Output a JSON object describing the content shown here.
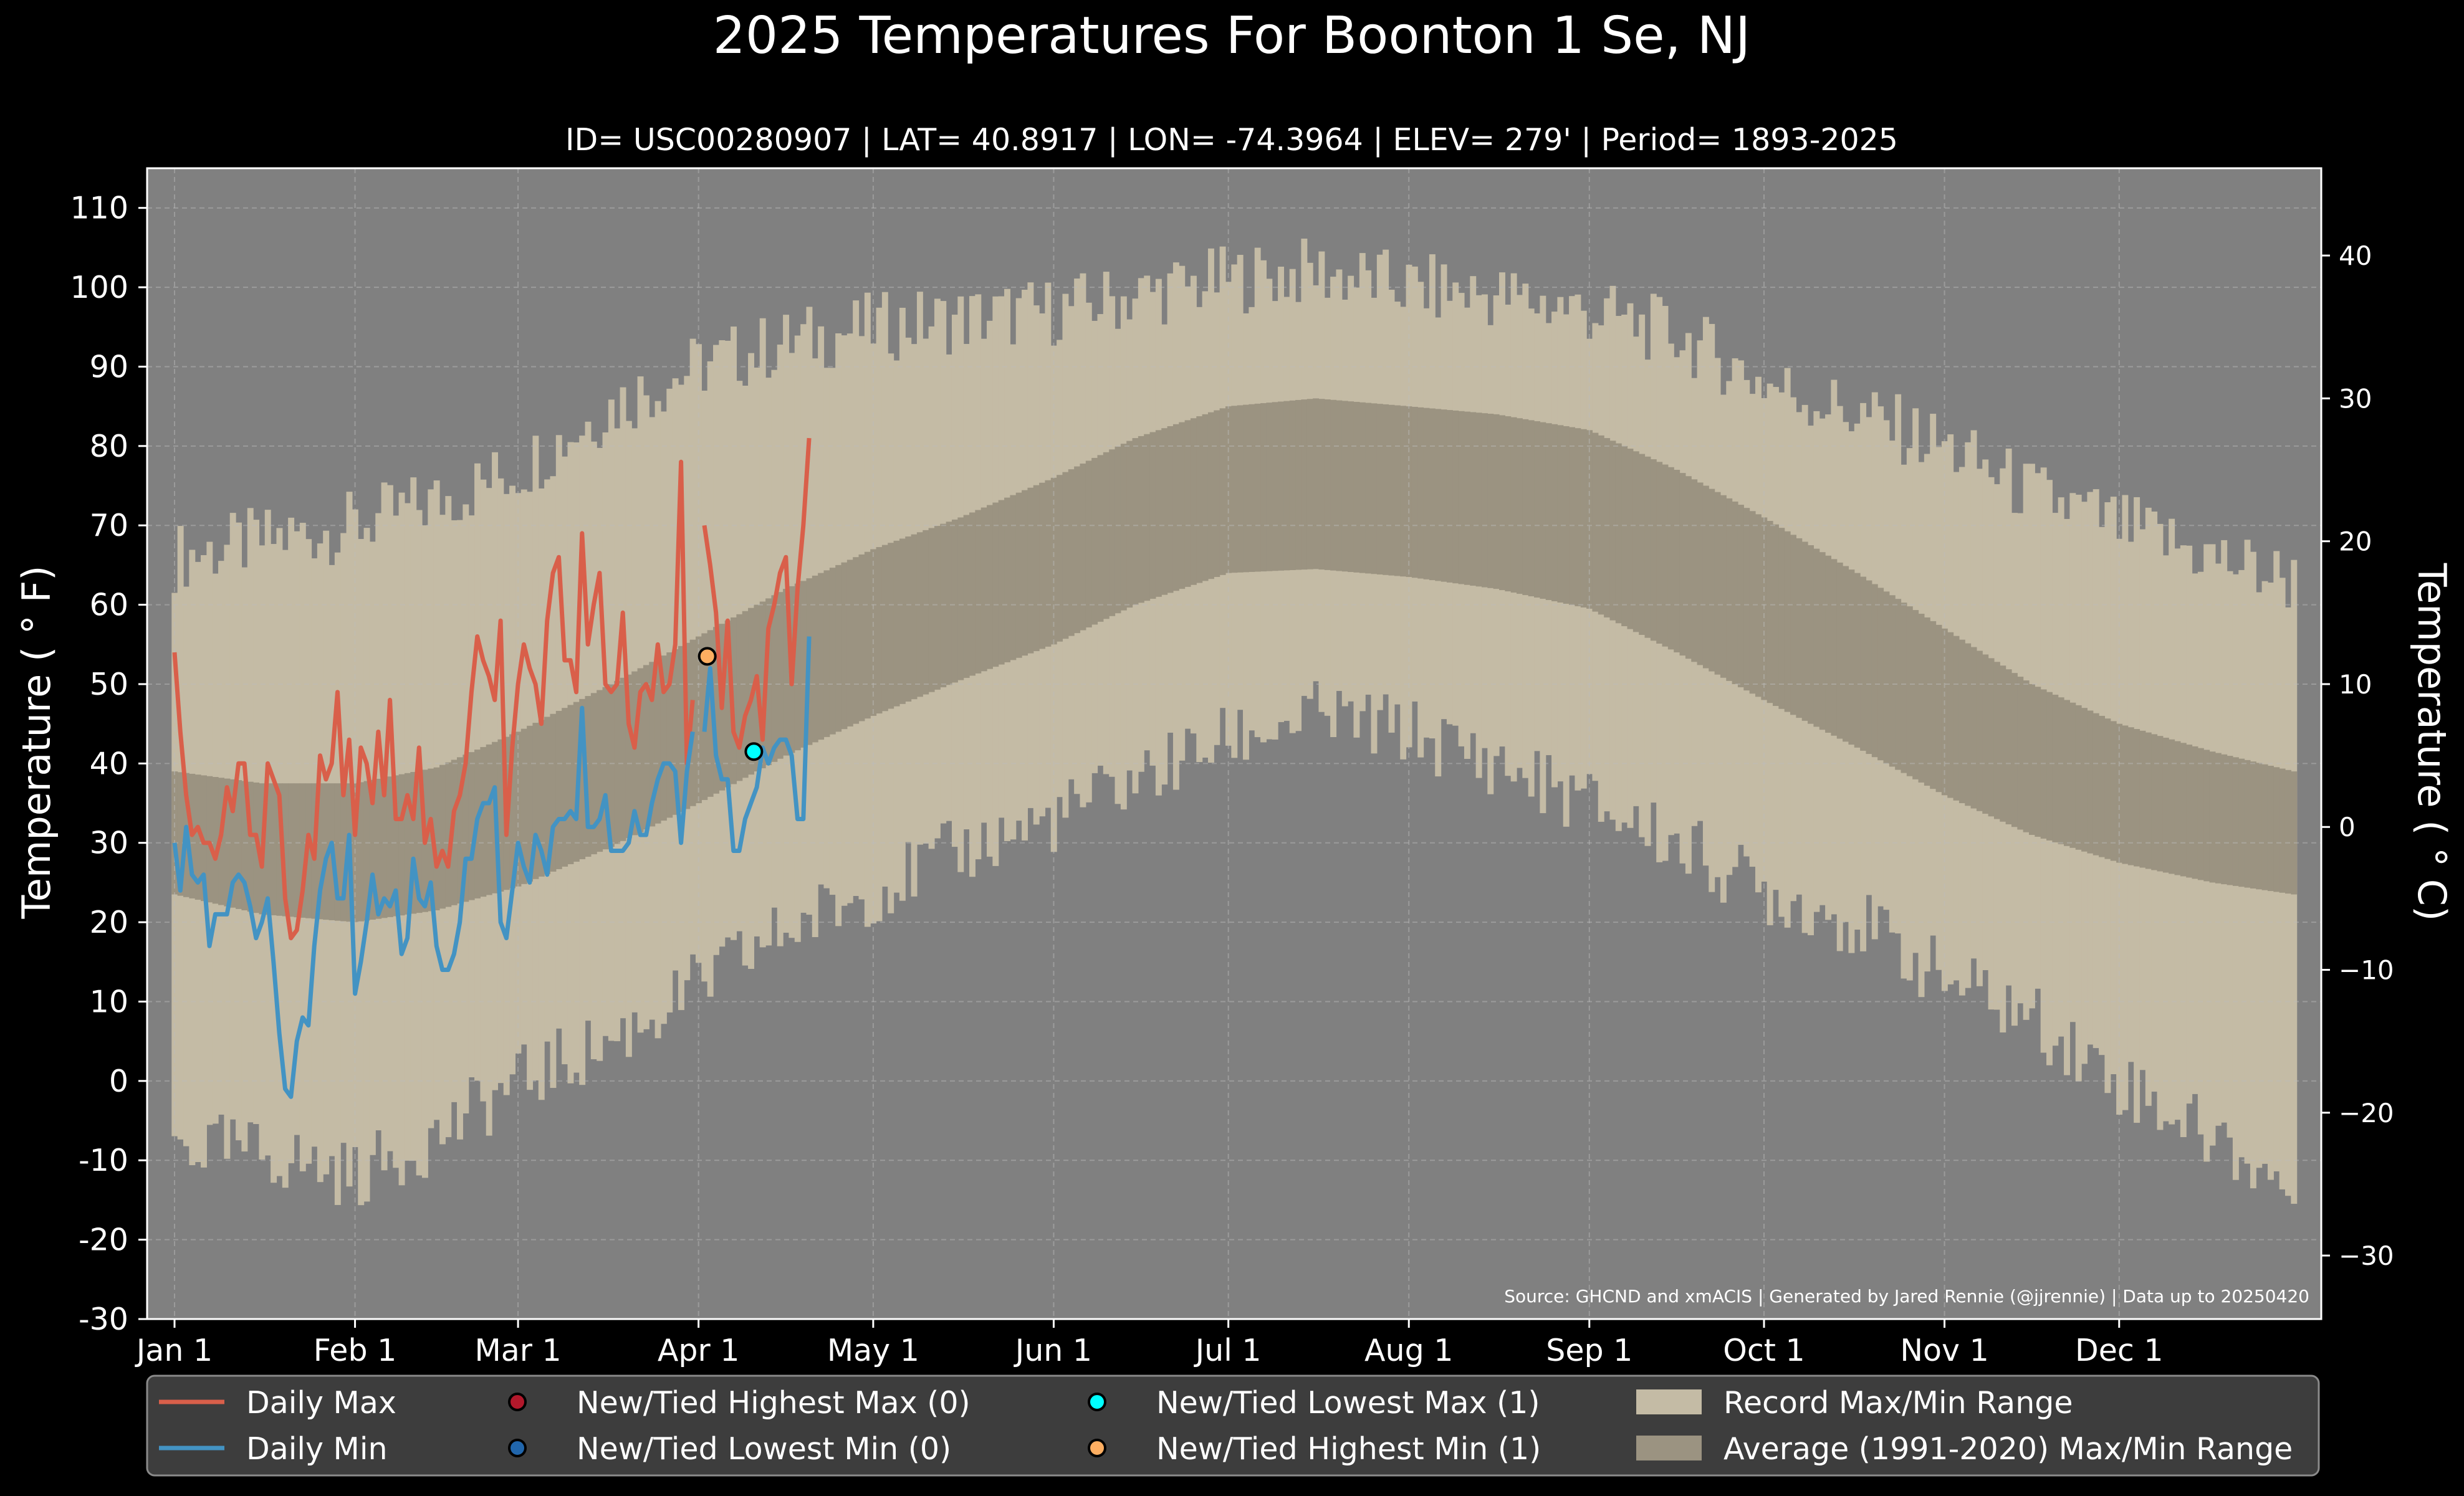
{
  "chart_data": {
    "type": "line",
    "title": "2025 Temperatures For Boonton 1 Se, NJ",
    "subtitle": "ID= USC00280907 | LAT= 40.8917 | LON= -74.3964 | ELEV= 279' | Period= 1893-2025",
    "ylabel_left": "Temperature ($^\\circ$F)",
    "ylabel_left_display": "Temperature ( ° F)",
    "ylabel_right_display": "Temperature ( ° C)",
    "source_note": "Source: GHCND and xmACIS | Generated by Jared Rennie (@jjrennie) | Data up to 20250420",
    "ylim": [
      -30,
      115
    ],
    "xlim_days": [
      -5,
      366
    ],
    "yticks": [
      -30,
      -20,
      -10,
      0,
      10,
      20,
      30,
      40,
      50,
      60,
      70,
      80,
      90,
      100,
      110
    ],
    "ytick_labels": [
      "-30",
      "-20",
      "-10",
      "0",
      "10",
      "20",
      "30",
      "40",
      "50",
      "60",
      "70",
      "80",
      "90",
      "100",
      "110"
    ],
    "yticks_right_c": [
      -30,
      -20,
      -10,
      0,
      10,
      20,
      30,
      40
    ],
    "yticks_right_labels": [
      "−30",
      "−20",
      "−10",
      "0",
      "10",
      "20",
      "30",
      "40"
    ],
    "xtick_days": [
      0,
      31,
      59,
      90,
      120,
      151,
      181,
      212,
      243,
      273,
      304,
      334
    ],
    "xtick_labels": [
      "Jan 1",
      "Feb 1",
      "Mar 1",
      "Apr 1",
      "May 1",
      "Jun 1",
      "Jul 1",
      "Aug 1",
      "Sep 1",
      "Oct 1",
      "Nov 1",
      "Dec 1"
    ],
    "grid": true,
    "legend_position": "bottom",
    "colors": {
      "background": "#000000",
      "plot_bg": "#808080",
      "record_range": "#c4bba5",
      "average_range": "#9b9381",
      "daily_max": "#d95f4a",
      "daily_min": "#4393c3",
      "highest_max_marker": "#b2182b",
      "lowest_min_marker": "#2166ac",
      "lowest_max_marker": "#00ffff",
      "highest_min_marker": "#fdae61",
      "legend_bg": "#3d3d3d"
    },
    "record_max_anchors": {
      "day": [
        0,
        15,
        31,
        45,
        59,
        75,
        90,
        105,
        120,
        135,
        151,
        165,
        181,
        196,
        212,
        227,
        243,
        258,
        273,
        289,
        304,
        319,
        334,
        350,
        364
      ],
      "value": [
        66,
        68,
        70,
        73,
        77,
        85,
        90,
        93,
        95,
        96,
        97,
        99,
        101,
        102,
        100,
        99,
        97,
        94,
        88,
        84,
        80,
        74,
        70,
        66,
        63
      ]
    },
    "record_min_anchors": {
      "day": [
        0,
        15,
        31,
        45,
        59,
        75,
        90,
        105,
        120,
        135,
        151,
        165,
        181,
        196,
        212,
        227,
        243,
        258,
        273,
        289,
        304,
        319,
        334,
        350,
        364
      ],
      "value": [
        -8,
        -9,
        -12,
        -7,
        0,
        5,
        12,
        19,
        24,
        29,
        33,
        38,
        43,
        46,
        44,
        40,
        35,
        30,
        24,
        20,
        13,
        8,
        0,
        -7,
        -14
      ]
    },
    "avg_max_anchors": {
      "day": [
        0,
        15,
        31,
        45,
        59,
        75,
        90,
        105,
        120,
        135,
        151,
        165,
        181,
        196,
        212,
        227,
        243,
        258,
        273,
        289,
        304,
        319,
        334,
        350,
        364
      ],
      "value": [
        39,
        37.5,
        37.5,
        39.5,
        44,
        50,
        56,
        62,
        67,
        71,
        76,
        81,
        85,
        86,
        85,
        84,
        82,
        77,
        71,
        64,
        57,
        50,
        45,
        41.5,
        39
      ]
    },
    "avg_min_anchors": {
      "day": [
        0,
        15,
        31,
        45,
        59,
        75,
        90,
        105,
        120,
        135,
        151,
        165,
        181,
        196,
        212,
        227,
        243,
        258,
        273,
        289,
        304,
        319,
        334,
        350,
        364
      ],
      "value": [
        23.5,
        21,
        20,
        21.5,
        24.5,
        29.5,
        35,
        41,
        46,
        50.5,
        55,
        60,
        64,
        64.5,
        63.5,
        62,
        59.5,
        54,
        48,
        42,
        36,
        31,
        27.5,
        25,
        23.5
      ]
    },
    "series": [
      {
        "name": "Daily Max",
        "day": [
          0,
          1,
          2,
          3,
          4,
          5,
          6,
          7,
          8,
          9,
          10,
          11,
          12,
          13,
          14,
          15,
          16,
          17,
          18,
          19,
          20,
          21,
          22,
          23,
          24,
          25,
          26,
          27,
          28,
          29,
          30,
          31,
          32,
          33,
          34,
          35,
          36,
          37,
          38,
          39,
          40,
          41,
          42,
          43,
          44,
          45,
          46,
          47,
          48,
          49,
          50,
          51,
          52,
          53,
          54,
          55,
          56,
          57,
          58,
          59,
          60,
          61,
          62,
          63,
          64,
          65,
          66,
          67,
          68,
          69,
          70,
          71,
          72,
          73,
          74,
          75,
          76,
          77,
          78,
          79,
          80,
          81,
          82,
          83,
          84,
          85,
          86,
          87,
          88,
          89
        ],
        "value": [
          54,
          44,
          36,
          31,
          32,
          30,
          30,
          28,
          31,
          37,
          34,
          40,
          40,
          31,
          31,
          27,
          40,
          38,
          36,
          23,
          18,
          19,
          24,
          31,
          28,
          41,
          38,
          40,
          49,
          36,
          43,
          31,
          42,
          40,
          35,
          44,
          36,
          48,
          33,
          33,
          36,
          33,
          42,
          30,
          33,
          27,
          29,
          27,
          34,
          36,
          40,
          49,
          56,
          53,
          51,
          48,
          58,
          31,
          42,
          50,
          55,
          52,
          50,
          45,
          58,
          64,
          66,
          53,
          53,
          49,
          69,
          55,
          60,
          64,
          50,
          49,
          50,
          59,
          45,
          42,
          49,
          50,
          48,
          55,
          49,
          50,
          55,
          78,
          40,
          48
        ],
        "gap_after": 89
      },
      {
        "name": "Daily Max (cont.)",
        "day": [
          91,
          92,
          93,
          94,
          95,
          96,
          97,
          98,
          99,
          100,
          101,
          102,
          103,
          104,
          105,
          106,
          107,
          108,
          109
        ],
        "value": [
          70,
          65,
          59,
          47,
          58,
          44,
          42,
          46,
          48,
          51,
          43,
          57,
          60,
          64,
          66,
          50,
          62,
          70,
          81
        ]
      },
      {
        "name": "Daily Min",
        "day": [
          0,
          1,
          2,
          3,
          4,
          5,
          6,
          7,
          8,
          9,
          10,
          11,
          12,
          13,
          14,
          15,
          16,
          17,
          18,
          19,
          20,
          21,
          22,
          23,
          24,
          25,
          26,
          27,
          28,
          29,
          30,
          31,
          32,
          33,
          34,
          35,
          36,
          37,
          38,
          39,
          40,
          41,
          42,
          43,
          44,
          45,
          46,
          47,
          48,
          49,
          50,
          51,
          52,
          53,
          54,
          55,
          56,
          57,
          58,
          59,
          60,
          61,
          62,
          63,
          64,
          65,
          66,
          67,
          68,
          69,
          70,
          71,
          72,
          73,
          74,
          75,
          76,
          77,
          78,
          79,
          80,
          81,
          82,
          83,
          84,
          85,
          86,
          87,
          88,
          89
        ],
        "value": [
          30,
          24,
          32,
          26,
          25,
          26,
          17,
          21,
          21,
          21,
          25,
          26,
          25,
          22,
          18,
          20,
          23,
          15,
          6,
          -1,
          -2,
          5,
          8,
          7,
          17,
          24,
          28,
          30,
          23,
          23,
          31,
          11,
          15,
          20,
          26,
          21,
          23,
          22,
          24,
          16,
          18,
          28,
          23,
          22,
          25,
          17,
          14,
          14,
          16,
          20,
          28,
          28,
          33,
          35,
          35,
          37,
          20,
          18,
          24,
          30,
          27,
          25,
          31,
          29,
          26,
          32,
          33,
          33,
          34,
          33,
          47,
          32,
          32,
          33,
          36,
          29,
          29,
          29,
          30,
          34,
          31,
          31,
          35,
          38,
          40,
          40,
          39,
          30,
          39,
          44
        ],
        "gap_after": 89
      },
      {
        "name": "Daily Min (cont.)",
        "day": [
          91,
          92,
          93,
          94,
          95,
          96,
          97,
          98,
          99,
          100,
          101,
          102,
          103,
          104,
          105,
          106,
          107,
          108,
          109
        ],
        "value": [
          44,
          52,
          41,
          38,
          38,
          29,
          29,
          33,
          35,
          37,
          42,
          40,
          42,
          43,
          43,
          41,
          33,
          33,
          56
        ]
      }
    ],
    "markers": [
      {
        "name": "New/Tied Highest Min (1)",
        "day": 91.5,
        "value": 53.5,
        "color": "#fdae61"
      },
      {
        "name": "New/Tied Lowest Max (1)",
        "day": 99.5,
        "value": 41.5,
        "color": "#00ffff"
      }
    ],
    "legend": [
      {
        "label": "Daily Max",
        "kind": "line",
        "color": "#d95f4a"
      },
      {
        "label": "Daily Min",
        "kind": "line",
        "color": "#4393c3"
      },
      {
        "label": "New/Tied Highest Max (0)",
        "kind": "dot",
        "color": "#b2182b"
      },
      {
        "label": "New/Tied Lowest Min (0)",
        "kind": "dot",
        "color": "#2166ac"
      },
      {
        "label": "New/Tied Lowest Max (1)",
        "kind": "dot",
        "color": "#00ffff"
      },
      {
        "label": "New/Tied Highest Min (1)",
        "kind": "dot",
        "color": "#fdae61"
      },
      {
        "label": "Record Max/Min Range",
        "kind": "patch",
        "color": "#c4bba5"
      },
      {
        "label": "Average (1991-2020) Max/Min Range",
        "kind": "patch",
        "color": "#9b9381"
      }
    ]
  }
}
